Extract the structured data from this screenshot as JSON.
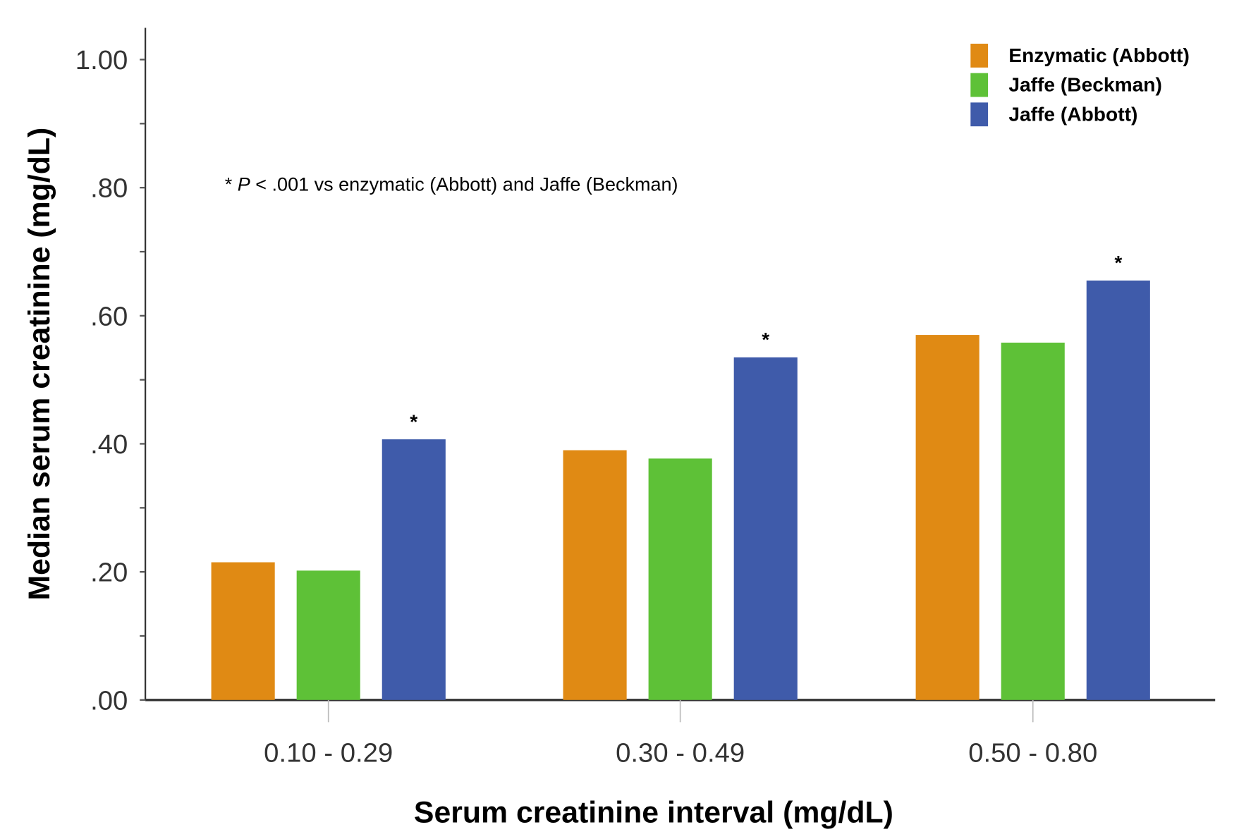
{
  "chart_data": {
    "type": "bar",
    "title": "",
    "xlabel": "Serum creatinine interval (mg/dL)",
    "ylabel": "Median serum creatinine (mg/dL)",
    "ylim": [
      0,
      1.0
    ],
    "yticks": [
      ".00",
      ".20",
      ".40",
      ".60",
      ".80",
      "1.00"
    ],
    "categories": [
      "0.10 - 0.29",
      "0.30 - 0.49",
      "0.50 - 0.80"
    ],
    "series": [
      {
        "name": "Enzymatic (Abbott)",
        "color": "#E08A14",
        "values": [
          0.215,
          0.39,
          0.57
        ]
      },
      {
        "name": "Jaffe (Beckman)",
        "color": "#5EC137",
        "values": [
          0.202,
          0.377,
          0.558
        ]
      },
      {
        "name": "Jaffe (Abbott)",
        "color": "#3F5BAA",
        "values": [
          0.407,
          0.535,
          0.655
        ],
        "significance_marker": "*"
      }
    ],
    "annotation": {
      "prefix": "* ",
      "italic": "P",
      "rest": " < .001 vs enzymatic (Abbott) and Jaffe (Beckman)"
    },
    "legend": "top-right",
    "grid": false
  }
}
